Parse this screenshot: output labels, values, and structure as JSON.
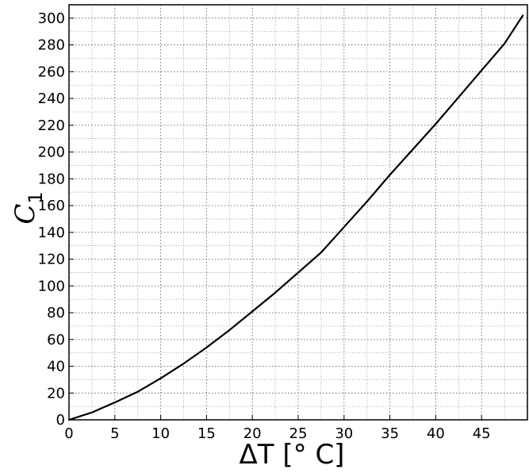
{
  "chart_data": {
    "type": "line",
    "title": "",
    "xlabel": "ΔT [° C]",
    "ylabel": {
      "main": "C",
      "subscript": "1"
    },
    "xlim": [
      0,
      50
    ],
    "ylim": [
      0,
      310
    ],
    "x_ticks": [
      0,
      5,
      10,
      15,
      20,
      25,
      30,
      35,
      40,
      45
    ],
    "y_ticks": [
      0,
      20,
      40,
      60,
      80,
      100,
      120,
      140,
      160,
      180,
      200,
      220,
      240,
      260,
      280,
      300
    ],
    "minor_x_ticks": [
      2.5,
      7.5,
      12.5,
      17.5,
      22.5,
      27.5,
      32.5,
      37.5,
      42.5,
      47.5
    ],
    "minor_y_ticks": [
      10,
      30,
      50,
      70,
      90,
      110,
      130,
      150,
      170,
      190,
      210,
      230,
      250,
      270,
      290
    ],
    "grid": true,
    "legend": "none",
    "series": [
      {
        "color": "#000000",
        "x": [
          0,
          2.5,
          5,
          7.5,
          10,
          12.5,
          15,
          17.5,
          20,
          22.5,
          25,
          27.5,
          30,
          32.5,
          35,
          37.5,
          40,
          42.5,
          45,
          47.5,
          49.5
        ],
        "y": [
          0,
          5.5,
          13,
          21,
          31,
          42,
          54,
          67,
          81,
          95,
          110,
          125,
          144,
          163,
          183,
          202,
          221,
          241,
          261,
          281,
          302
        ]
      }
    ]
  }
}
